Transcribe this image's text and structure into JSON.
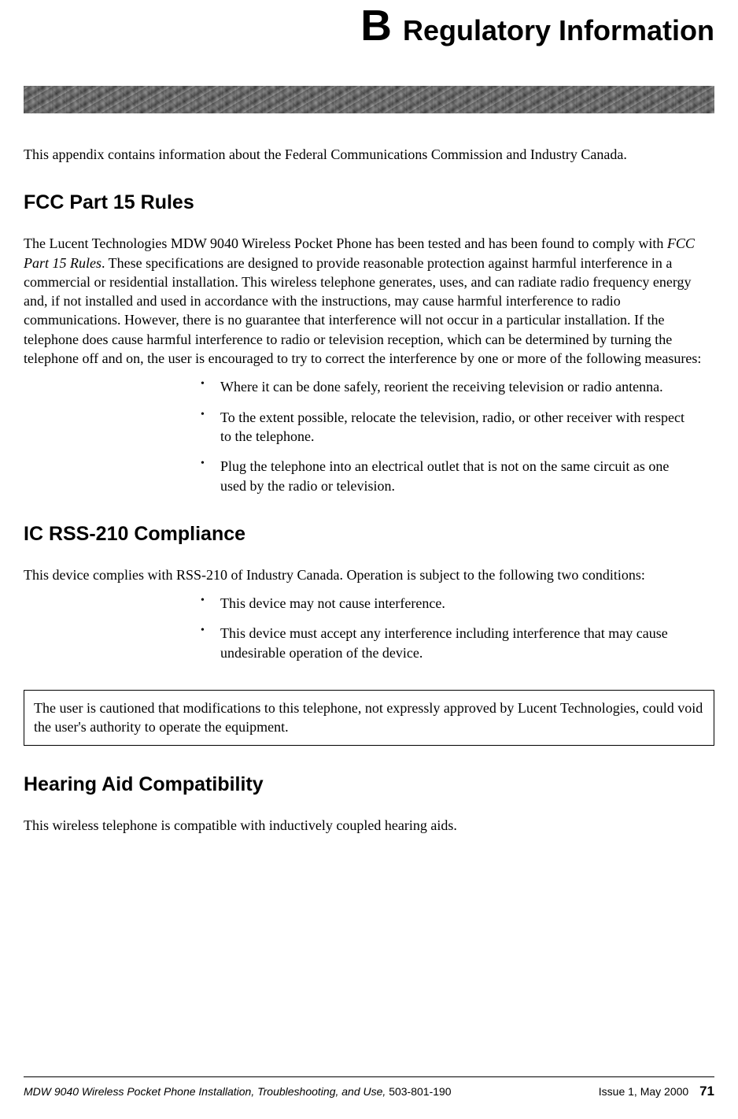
{
  "header": {
    "appendix_letter": "B",
    "appendix_title": "Regulatory Information"
  },
  "intro": "This appendix contains information about the Federal Communications Commission and Industry Canada.",
  "sections": {
    "fcc": {
      "heading": "FCC Part 15 Rules",
      "body_prefix": "The Lucent Technologies MDW 9040 Wireless Pocket Phone has been tested and has been found to comply with ",
      "body_italic": "FCC Part 15 Rules",
      "body_suffix": ". These specifications are designed to provide reasonable protection against harmful interference in a commercial or residential installation. This wireless telephone generates, uses, and can radiate radio frequency energy and, if not installed and used in accordance with the instructions, may cause harmful interference to radio communications. However, there is no guarantee that interference will not occur in a particular installation. If the telephone does cause harmful interference to radio or television reception, which can be determined by turning the telephone off and on, the user is encouraged to try to correct the interference by one or more of the following measures:",
      "bullets": [
        "Where it can be done safely, reorient the receiving television or radio antenna.",
        "To the extent possible, relocate the television, radio, or other receiver with respect to the telephone.",
        "Plug the telephone into an electrical outlet that is not on the same circuit as one used by the radio or television."
      ]
    },
    "ic": {
      "heading": "IC RSS-210 Compliance",
      "body": "This device complies with RSS-210 of Industry Canada. Operation is subject to the following two conditions:",
      "bullets": [
        "This device may not cause interference.",
        "This device must accept any interference including interference that may cause undesirable operation of the device."
      ],
      "caution": "The user is cautioned that modifications to this telephone, not expressly approved by Lucent Technologies, could void the user's authority to operate the equipment."
    },
    "hearing": {
      "heading": "Hearing Aid Compatibility",
      "body": "This wireless telephone is compatible with inductively coupled hearing aids."
    }
  },
  "footer": {
    "doc_title": "MDW 9040 Wireless Pocket Phone Installation, Troubleshooting, and Use, ",
    "doc_number": "503-801-190",
    "issue": "Issue 1, May 2000",
    "page_number": "71"
  }
}
